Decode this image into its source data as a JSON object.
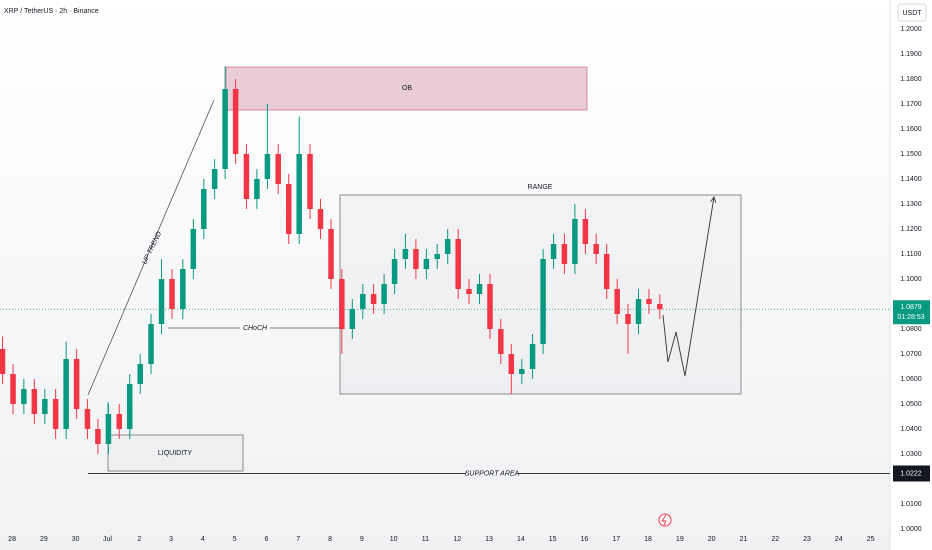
{
  "header": {
    "title": "XRP / TetherUS · 2h · Binance",
    "currency": "USDT"
  },
  "chart_data": {
    "type": "candlestick",
    "x": [
      -0.3,
      0.03,
      0.37,
      0.7,
      1.03,
      1.37,
      1.7,
      2.03,
      2.37,
      2.7,
      3.03,
      3.37,
      3.7,
      4.03,
      4.37,
      4.7,
      5.03,
      5.37,
      5.7,
      6.03,
      6.37,
      6.7,
      7.03,
      7.37,
      7.7,
      8.03,
      8.37,
      8.7,
      9.03,
      9.37,
      9.7,
      10.03,
      10.37,
      10.7,
      11.03,
      11.37,
      11.7,
      12.03,
      12.37,
      12.7,
      13.03,
      13.37,
      13.7,
      14.03,
      14.37,
      14.7,
      15.03,
      15.37,
      15.7,
      16.03,
      16.37,
      16.7,
      17.03,
      17.37,
      17.7,
      18.03,
      18.37,
      18.7,
      19.03,
      19.37,
      19.7,
      20.03,
      20.37
    ],
    "open": [
      1.072,
      1.062,
      1.05,
      1.056,
      1.046,
      1.052,
      1.04,
      1.068,
      1.048,
      1.04,
      1.034,
      1.046,
      1.04,
      1.058,
      1.066,
      1.082,
      1.1,
      1.088,
      1.104,
      1.12,
      1.136,
      1.144,
      1.176,
      1.15,
      1.132,
      1.14,
      1.15,
      1.138,
      1.118,
      1.15,
      1.128,
      1.12,
      1.1,
      1.08,
      1.088,
      1.094,
      1.09,
      1.098,
      1.108,
      1.112,
      1.104,
      1.108,
      1.11,
      1.116,
      1.096,
      1.094,
      1.098,
      1.08,
      1.07,
      1.062,
      1.064,
      1.074,
      1.108,
      1.114,
      1.106,
      1.124,
      1.114,
      1.11,
      1.096,
      1.086,
      1.082,
      1.092,
      1.09
    ],
    "high": [
      1.077,
      1.066,
      1.06,
      1.06,
      1.056,
      1.056,
      1.075,
      1.072,
      1.052,
      1.044,
      1.05,
      1.05,
      1.062,
      1.07,
      1.086,
      1.108,
      1.104,
      1.108,
      1.124,
      1.14,
      1.148,
      1.185,
      1.18,
      1.154,
      1.144,
      1.17,
      1.154,
      1.142,
      1.165,
      1.154,
      1.132,
      1.124,
      1.104,
      1.092,
      1.098,
      1.098,
      1.102,
      1.112,
      1.118,
      1.116,
      1.112,
      1.114,
      1.12,
      1.12,
      1.1,
      1.102,
      1.102,
      1.084,
      1.074,
      1.068,
      1.078,
      1.112,
      1.118,
      1.118,
      1.13,
      1.128,
      1.118,
      1.114,
      1.1,
      1.09,
      1.096,
      1.096,
      1.094
    ],
    "low": [
      1.058,
      1.046,
      1.046,
      1.042,
      1.042,
      1.036,
      1.036,
      1.044,
      1.036,
      1.03,
      1.03,
      1.036,
      1.036,
      1.054,
      1.062,
      1.078,
      1.084,
      1.084,
      1.1,
      1.116,
      1.132,
      1.14,
      1.146,
      1.128,
      1.128,
      1.136,
      1.134,
      1.114,
      1.114,
      1.124,
      1.116,
      1.096,
      1.07,
      1.076,
      1.084,
      1.086,
      1.086,
      1.094,
      1.104,
      1.1,
      1.1,
      1.104,
      1.106,
      1.092,
      1.09,
      1.09,
      1.076,
      1.066,
      1.054,
      1.058,
      1.06,
      1.07,
      1.104,
      1.102,
      1.102,
      1.11,
      1.106,
      1.092,
      1.082,
      1.07,
      1.078,
      1.086,
      1.084
    ],
    "close": [
      1.062,
      1.05,
      1.056,
      1.046,
      1.052,
      1.04,
      1.068,
      1.048,
      1.04,
      1.034,
      1.046,
      1.04,
      1.058,
      1.066,
      1.082,
      1.1,
      1.088,
      1.104,
      1.12,
      1.136,
      1.144,
      1.176,
      1.15,
      1.132,
      1.14,
      1.15,
      1.138,
      1.118,
      1.15,
      1.128,
      1.12,
      1.1,
      1.08,
      1.088,
      1.094,
      1.09,
      1.098,
      1.108,
      1.112,
      1.104,
      1.108,
      1.11,
      1.116,
      1.096,
      1.094,
      1.098,
      1.08,
      1.07,
      1.062,
      1.064,
      1.074,
      1.108,
      1.114,
      1.106,
      1.124,
      1.114,
      1.11,
      1.096,
      1.086,
      1.082,
      1.092,
      1.09,
      1.0879
    ],
    "up_color": "#089981",
    "down_color": "#f23645",
    "xlim": [
      -0.38,
      27.61
    ],
    "xticks": [
      {
        "value": 0,
        "label": "28"
      },
      {
        "value": 1,
        "label": "29"
      },
      {
        "value": 2,
        "label": "30"
      },
      {
        "value": 3,
        "label": "Jul"
      },
      {
        "value": 4,
        "label": "2"
      },
      {
        "value": 5,
        "label": "3"
      },
      {
        "value": 6,
        "label": "4"
      },
      {
        "value": 7,
        "label": "5"
      },
      {
        "value": 8,
        "label": "6"
      },
      {
        "value": 9,
        "label": "7"
      },
      {
        "value": 10,
        "label": "8"
      },
      {
        "value": 11,
        "label": "9"
      },
      {
        "value": 12,
        "label": "10"
      },
      {
        "value": 13,
        "label": "11"
      },
      {
        "value": 14,
        "label": "12"
      },
      {
        "value": 15,
        "label": "13"
      },
      {
        "value": 16,
        "label": "14"
      },
      {
        "value": 17,
        "label": "15"
      },
      {
        "value": 18,
        "label": "16"
      },
      {
        "value": 19,
        "label": "17"
      },
      {
        "value": 20,
        "label": "18"
      },
      {
        "value": 21,
        "label": "19"
      },
      {
        "value": 22,
        "label": "20"
      },
      {
        "value": 23,
        "label": "21"
      },
      {
        "value": 24,
        "label": "22"
      },
      {
        "value": 25,
        "label": "23"
      },
      {
        "value": 26,
        "label": "24"
      },
      {
        "value": 27,
        "label": "25"
      }
    ],
    "ylim": [
      0.9916,
      1.2116
    ],
    "yticks": [
      {
        "value": 1.0,
        "label": "1.0000"
      },
      {
        "value": 1.01,
        "label": "1.0100"
      },
      {
        "value": 1.02,
        "label": "1.0200"
      },
      {
        "value": 1.03,
        "label": "1.0300"
      },
      {
        "value": 1.04,
        "label": "1.0400"
      },
      {
        "value": 1.05,
        "label": "1.0500"
      },
      {
        "value": 1.06,
        "label": "1.0600"
      },
      {
        "value": 1.07,
        "label": "1.0700"
      },
      {
        "value": 1.08,
        "label": "1.0800"
      },
      {
        "value": 1.09,
        "label": "1.0900"
      },
      {
        "value": 1.1,
        "label": "1.1000"
      },
      {
        "value": 1.11,
        "label": "1.1100"
      },
      {
        "value": 1.12,
        "label": "1.1200"
      },
      {
        "value": 1.13,
        "label": "1.1300"
      },
      {
        "value": 1.14,
        "label": "1.1400"
      },
      {
        "value": 1.15,
        "label": "1.1500"
      },
      {
        "value": 1.16,
        "label": "1.1600"
      },
      {
        "value": 1.17,
        "label": "1.1700"
      },
      {
        "value": 1.18,
        "label": "1.1800"
      },
      {
        "value": 1.19,
        "label": "1.1900"
      },
      {
        "value": 1.2,
        "label": "1.2000"
      }
    ],
    "last_price": 1.0879,
    "countdown": "01:28:53",
    "support_level": 1.0222,
    "annotations": {
      "ob": "OB",
      "range": "RANGE",
      "trend": "UP TREND",
      "choch": "CHoCH",
      "liquidity": "LIQUIDITY",
      "support": "SUPPORT AREA"
    }
  }
}
